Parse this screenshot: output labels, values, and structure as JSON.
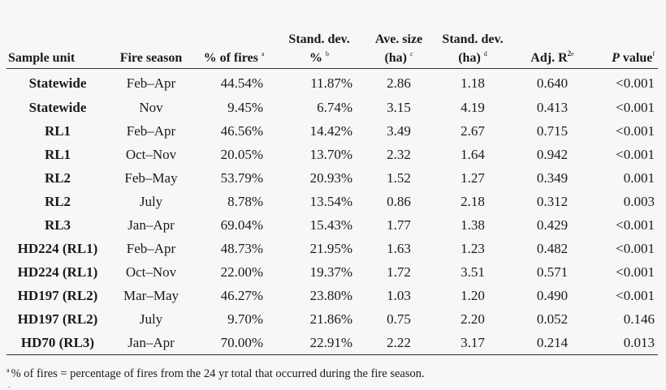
{
  "headers": {
    "sample_unit": "Sample unit",
    "fire_season": "Fire season",
    "pct_fires": "% of fires",
    "pct_fires_note": "a",
    "sd_pct_line1": "Stand. dev.",
    "sd_pct_line2": "%",
    "sd_pct_note": "b",
    "ave_size_line1": "Ave. size",
    "ave_size_line2": "(ha)",
    "ave_size_note": "c",
    "sd_ha_line1": "Stand. dev.",
    "sd_ha_line2": "(ha)",
    "sd_ha_note": "d",
    "adj_r2": "Adj. R",
    "adj_r2_exp": "2",
    "adj_r2_note": "e",
    "p_value_italic": "P",
    "p_value_rest": " value",
    "p_value_note": "f"
  },
  "rows": [
    {
      "unit": "Statewide",
      "season": "Feb–Apr",
      "pct": "44.54%",
      "sd_pct": "11.87%",
      "ave": "2.86",
      "sd_ha": "1.18",
      "r2": "0.640",
      "p": "<0.001"
    },
    {
      "unit": "Statewide",
      "season": "Nov",
      "pct": "9.45%",
      "sd_pct": "6.74%",
      "ave": "3.15",
      "sd_ha": "4.19",
      "r2": "0.413",
      "p": "<0.001"
    },
    {
      "unit": "RL1",
      "season": "Feb–Apr",
      "pct": "46.56%",
      "sd_pct": "14.42%",
      "ave": "3.49",
      "sd_ha": "2.67",
      "r2": "0.715",
      "p": "<0.001"
    },
    {
      "unit": "RL1",
      "season": "Oct–Nov",
      "pct": "20.05%",
      "sd_pct": "13.70%",
      "ave": "2.32",
      "sd_ha": "1.64",
      "r2": "0.942",
      "p": "<0.001"
    },
    {
      "unit": "RL2",
      "season": "Feb–May",
      "pct": "53.79%",
      "sd_pct": "20.93%",
      "ave": "1.52",
      "sd_ha": "1.27",
      "r2": "0.349",
      "p": "0.001"
    },
    {
      "unit": "RL2",
      "season": "July",
      "pct": "8.78%",
      "sd_pct": "13.54%",
      "ave": "0.86",
      "sd_ha": "2.18",
      "r2": "0.312",
      "p": "0.003"
    },
    {
      "unit": "RL3",
      "season": "Jan–Apr",
      "pct": "69.04%",
      "sd_pct": "15.43%",
      "ave": "1.77",
      "sd_ha": "1.38",
      "r2": "0.429",
      "p": "<0.001"
    },
    {
      "unit": "HD224 (RL1)",
      "season": "Feb–Apr",
      "pct": "48.73%",
      "sd_pct": "21.95%",
      "ave": "1.63",
      "sd_ha": "1.23",
      "r2": "0.482",
      "p": "<0.001"
    },
    {
      "unit": "HD224 (RL1)",
      "season": "Oct–Nov",
      "pct": "22.00%",
      "sd_pct": "19.37%",
      "ave": "1.72",
      "sd_ha": "3.51",
      "r2": "0.571",
      "p": "<0.001"
    },
    {
      "unit": "HD197 (RL2)",
      "season": "Mar–May",
      "pct": "46.27%",
      "sd_pct": "23.80%",
      "ave": "1.03",
      "sd_ha": "1.20",
      "r2": "0.490",
      "p": "<0.001"
    },
    {
      "unit": "HD197 (RL2)",
      "season": "July",
      "pct": "9.70%",
      "sd_pct": "21.86%",
      "ave": "0.75",
      "sd_ha": "2.20",
      "r2": "0.052",
      "p": "0.146"
    },
    {
      "unit": "HD70 (RL3)",
      "season": "Jan–Apr",
      "pct": "70.00%",
      "sd_pct": "22.91%",
      "ave": "2.22",
      "sd_ha": "3.17",
      "r2": "0.214",
      "p": "0.013"
    }
  ],
  "footnote": {
    "mark": "a",
    "text": "% of fires = percentage of fires from the 24 yr total that occurred during the fire season.",
    "mark2": "."
  }
}
